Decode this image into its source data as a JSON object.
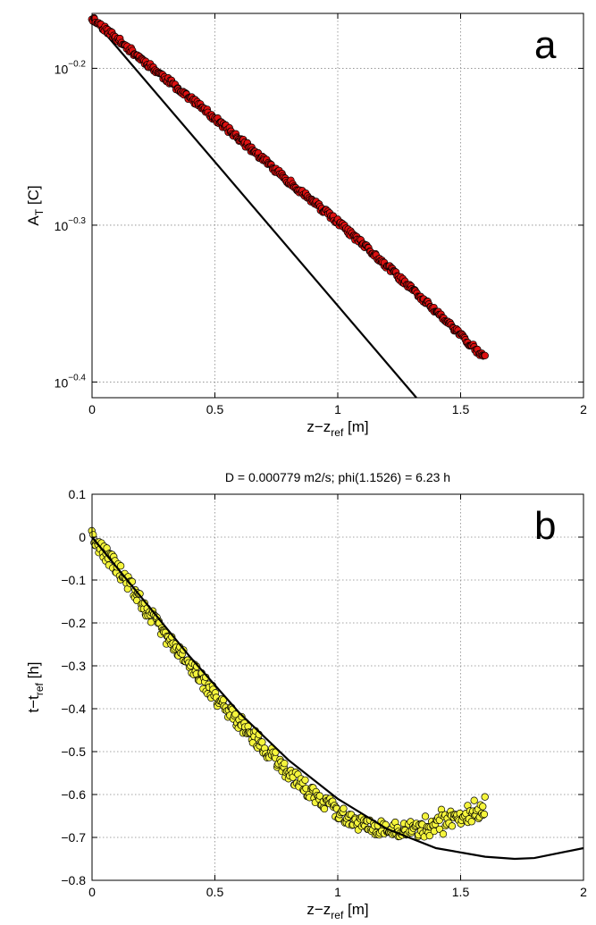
{
  "chart_data": [
    {
      "type": "scatter",
      "panel_label": "a",
      "title": "",
      "xlabel": "z−z",
      "xlabel_sub": "ref",
      "xlabel_suffix": " [m]",
      "ylabel": "A",
      "ylabel_sub": "T",
      "ylabel_suffix": " [C]",
      "y_scale": "log10",
      "xlim": [
        0,
        2
      ],
      "ylim_log10": [
        -0.41,
        -0.165
      ],
      "x_ticks": [
        0,
        0.5,
        1,
        1.5,
        2
      ],
      "x_tick_labels": [
        "0",
        "0.5",
        "1",
        "1.5",
        "2"
      ],
      "y_ticks_log10": [
        -0.2,
        -0.3,
        -0.4
      ],
      "y_tick_base": "10",
      "y_tick_exponents": [
        "−0.2",
        "−0.3",
        "−0.4"
      ],
      "grid": true,
      "marker_color": "#dd1111",
      "series": [
        {
          "type": "scatter",
          "x_range": [
            0,
            1.6
          ],
          "log10_curve_x": [
            0,
            0.2,
            0.4,
            0.6,
            0.8,
            1.0,
            1.2,
            1.4,
            1.6
          ],
          "log10_curve_y": [
            -0.168,
            -0.194,
            -0.219,
            -0.245,
            -0.272,
            -0.298,
            -0.326,
            -0.355,
            -0.385
          ]
        },
        {
          "type": "line",
          "x": [
            0,
            1.32
          ],
          "log10_y": [
            -0.168,
            -0.41
          ]
        }
      ]
    },
    {
      "type": "scatter",
      "panel_label": "b",
      "title": "D = 0.000779 m2/s; phi(1.1526) = 6.23 h",
      "xlabel": "z−z",
      "xlabel_sub": "ref",
      "xlabel_suffix": " [m]",
      "ylabel": "t−t",
      "ylabel_sub": "ref",
      "ylabel_suffix": " [h]",
      "xlim": [
        0,
        2
      ],
      "ylim": [
        -0.8,
        0.1
      ],
      "x_ticks": [
        0,
        0.5,
        1,
        1.5,
        2
      ],
      "x_tick_labels": [
        "0",
        "0.5",
        "1",
        "1.5",
        "2"
      ],
      "y_ticks": [
        0.1,
        0,
        -0.1,
        -0.2,
        -0.3,
        -0.4,
        -0.5,
        -0.6,
        -0.7,
        -0.8
      ],
      "y_tick_labels": [
        "0.1",
        "0",
        "−0.1",
        "−0.2",
        "−0.3",
        "−0.4",
        "−0.5",
        "−0.6",
        "−0.7",
        "−0.8"
      ],
      "grid": true,
      "marker_color": "#f5f53c",
      "series": [
        {
          "type": "scatter",
          "x_range": [
            0,
            1.6
          ],
          "curve_x": [
            0,
            0.1,
            0.2,
            0.3,
            0.4,
            0.5,
            0.6,
            0.7,
            0.8,
            0.9,
            1.0,
            1.1,
            1.2,
            1.3,
            1.4,
            1.5,
            1.6
          ],
          "curve_y": [
            0.0,
            -0.07,
            -0.15,
            -0.23,
            -0.3,
            -0.37,
            -0.43,
            -0.49,
            -0.55,
            -0.6,
            -0.64,
            -0.67,
            -0.68,
            -0.68,
            -0.67,
            -0.65,
            -0.63
          ]
        },
        {
          "type": "line",
          "x": [
            0,
            0.2,
            0.4,
            0.6,
            0.8,
            1.0,
            1.2,
            1.4,
            1.6,
            1.72,
            1.8,
            2.0
          ],
          "y": [
            0.0,
            -0.14,
            -0.28,
            -0.41,
            -0.52,
            -0.61,
            -0.68,
            -0.725,
            -0.745,
            -0.75,
            -0.748,
            -0.725
          ]
        }
      ]
    }
  ]
}
